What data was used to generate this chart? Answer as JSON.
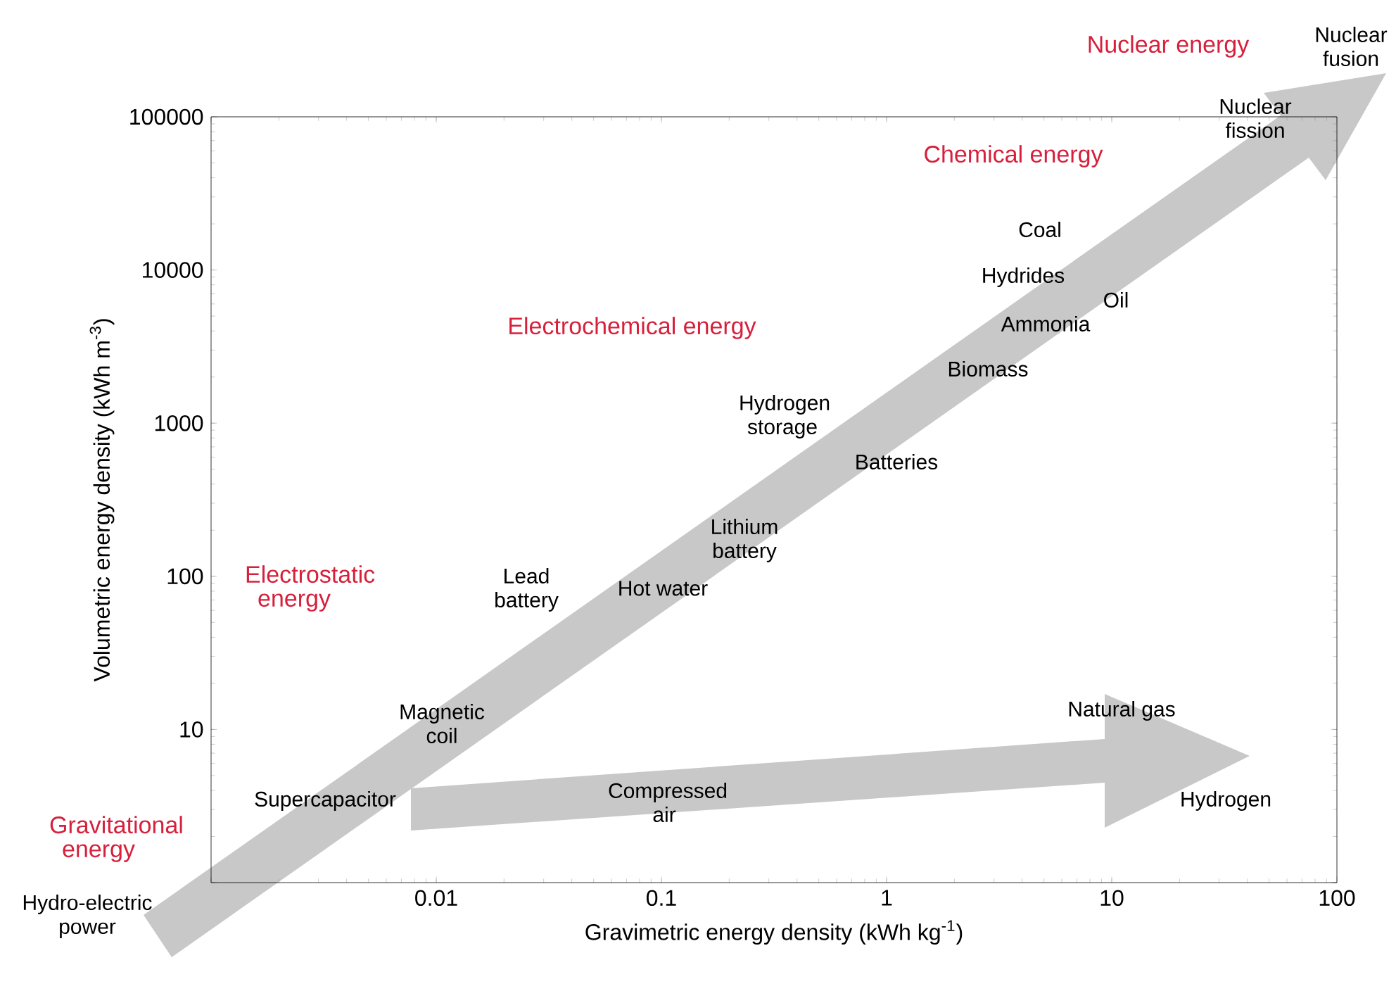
{
  "chart_data": {
    "type": "scatter",
    "xlabel": "Gravimetric energy density (kWh kg$^{-1}$)",
    "ylabel": "Volumetric energy density (kWh m$^{-3}$)",
    "log": "xy",
    "xlim": [
      0.001,
      100
    ],
    "ylim": [
      1,
      100000
    ],
    "xticks": [
      {
        "value": 0.001,
        "label": null
      },
      0.01,
      0.1,
      1,
      10,
      100
    ],
    "yticks": [
      {
        "value": 1,
        "label": null
      },
      10,
      100,
      1000,
      10000,
      100000
    ],
    "annotations": [
      "Nuclear fission",
      "Coal",
      "Hydrides",
      "Oil",
      "Ammonia",
      "Biomass",
      "Hydrogen storage",
      "Batteries",
      "Lithium battery",
      "Lead battery",
      "Hot water",
      "Magnetic coil",
      "Natural gas",
      "Supercapacitor",
      "Compressed air",
      "Hydrogen",
      "Nuclear energy",
      "Chemical energy",
      "Electrochemical energy",
      "Electrostatic energy",
      "Gravitational energy",
      "Nuclear fusion",
      "Hydro-electric power"
    ]
  }
}
